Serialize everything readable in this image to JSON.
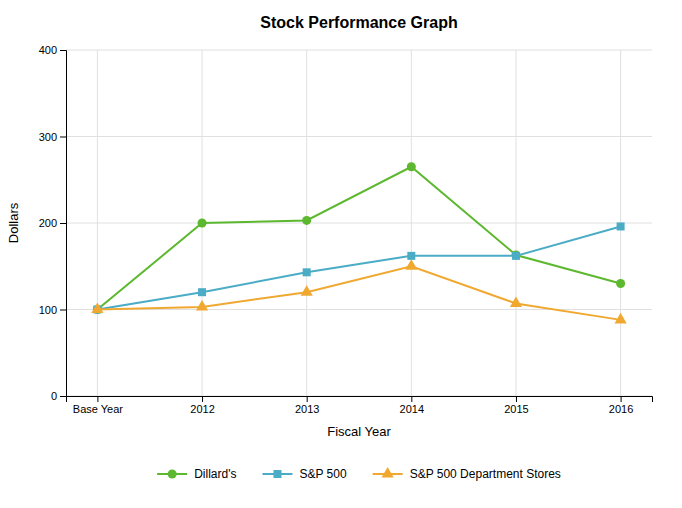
{
  "chart_data": {
    "type": "line",
    "title": "Stock Performance Graph",
    "xlabel": "Fiscal Year",
    "ylabel": "Dollars",
    "categories": [
      "Base Year",
      "2012",
      "2013",
      "2014",
      "2015",
      "2016"
    ],
    "series": [
      {
        "name": "Dillard's",
        "color": "#5cb82e",
        "marker": "circle",
        "values": [
          100,
          200,
          203,
          265,
          163,
          130
        ]
      },
      {
        "name": "S&P 500",
        "color": "#4bacc6",
        "marker": "square",
        "values": [
          100,
          120,
          143,
          162,
          162,
          196
        ]
      },
      {
        "name": "S&P 500 Department Stores",
        "color": "#f0a830",
        "marker": "triangle",
        "values": [
          100,
          103,
          120,
          150,
          107,
          88
        ]
      }
    ],
    "ylim": [
      0,
      400
    ],
    "yticks": [
      0,
      100,
      200,
      300,
      400
    ],
    "grid": true,
    "legend": "bottom"
  }
}
